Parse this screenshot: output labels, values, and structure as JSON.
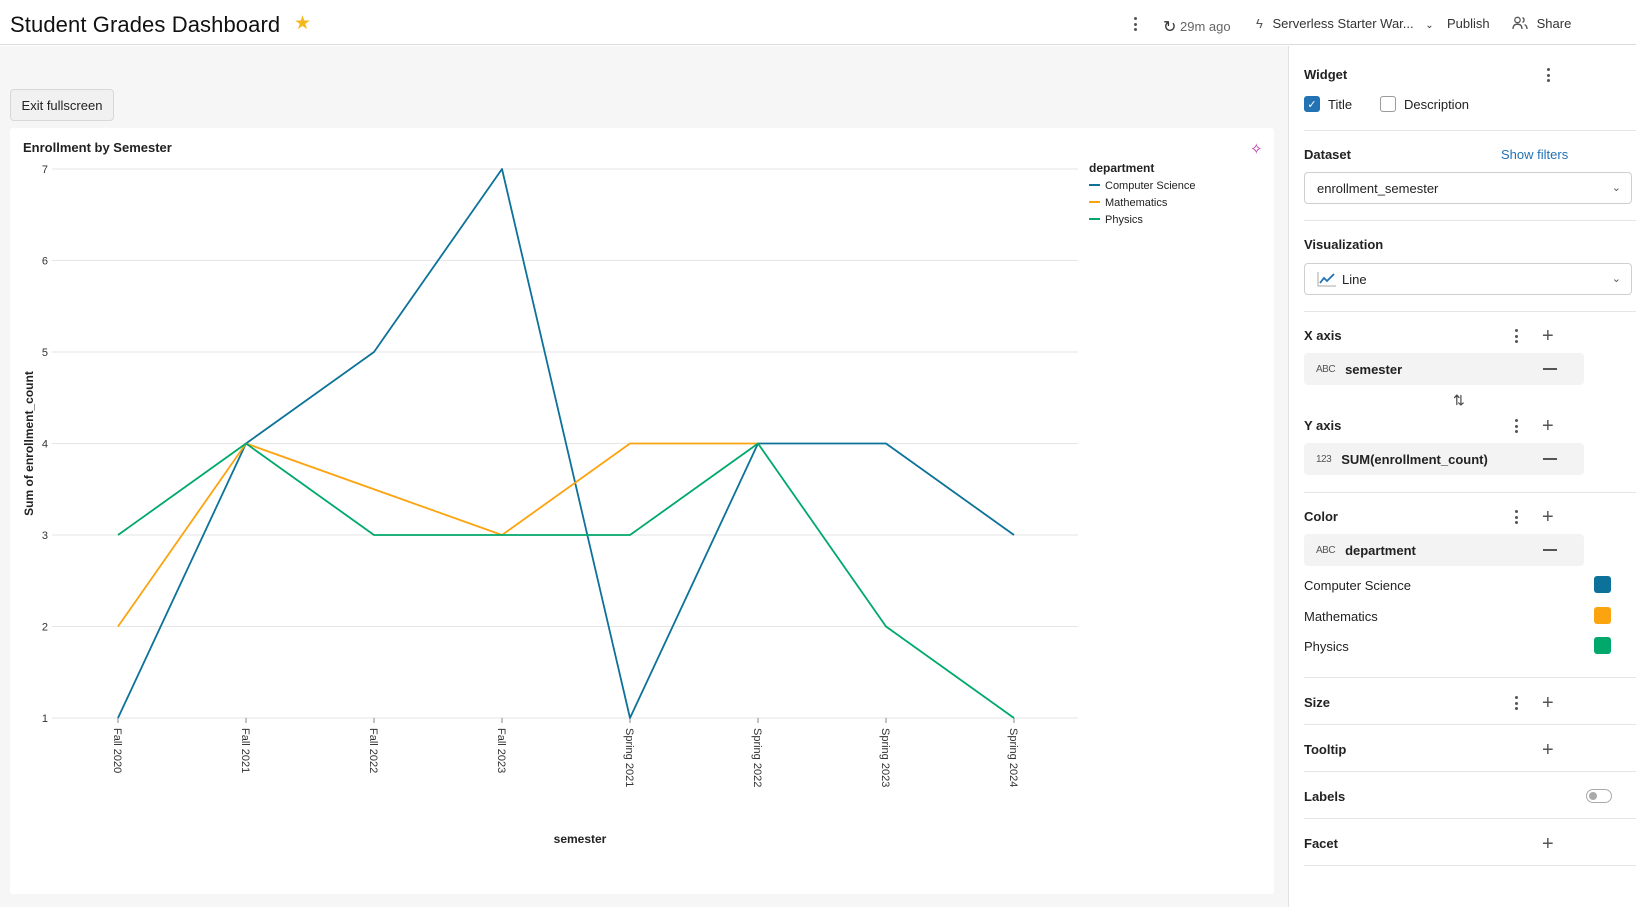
{
  "header": {
    "title": "Student Grades Dashboard",
    "refresh": "29m ago",
    "warehouse": "Serverless Starter War...",
    "publish": "Publish",
    "share": "Share"
  },
  "canvas": {
    "exit_fullscreen": "Exit fullscreen",
    "widget_title": "Enrollment by Semester"
  },
  "panel": {
    "widget": {
      "title": "Widget",
      "title_checkbox": "Title",
      "description_checkbox": "Description"
    },
    "dataset": {
      "title": "Dataset",
      "show_filters": "Show filters",
      "value": "enrollment_semester"
    },
    "visualization": {
      "title": "Visualization",
      "value": "Line"
    },
    "x_axis": {
      "title": "X axis",
      "field": "semester",
      "type": "ABC"
    },
    "y_axis": {
      "title": "Y axis",
      "field": "SUM(enrollment_count)",
      "type": "123"
    },
    "color": {
      "title": "Color",
      "field": "department",
      "type": "ABC",
      "entries": [
        {
          "label": "Computer Science",
          "color": "#0c7299"
        },
        {
          "label": "Mathematics",
          "color": "#fca410"
        },
        {
          "label": "Physics",
          "color": "#00a86b"
        }
      ]
    },
    "size": {
      "title": "Size"
    },
    "tooltip": {
      "title": "Tooltip"
    },
    "labels": {
      "title": "Labels"
    },
    "facet": {
      "title": "Facet"
    }
  },
  "chart_data": {
    "type": "line",
    "title": "Enrollment by Semester",
    "xlabel": "semester",
    "ylabel": "Sum of enrollment_count",
    "categories": [
      "Fall 2020",
      "Fall 2021",
      "Fall 2022",
      "Fall 2023",
      "Spring 2021",
      "Spring 2022",
      "Spring 2023",
      "Spring 2024"
    ],
    "ylim": [
      1,
      7
    ],
    "yticks": [
      1,
      2,
      3,
      4,
      5,
      6,
      7
    ],
    "grid": true,
    "legend_title": "department",
    "legend_position": "top-right",
    "series": [
      {
        "name": "Computer Science",
        "color": "#0c7299",
        "values": [
          1,
          4,
          5,
          7,
          1,
          4,
          4,
          3
        ]
      },
      {
        "name": "Mathematics",
        "color": "#fca410",
        "values": [
          2,
          4,
          null,
          3,
          4,
          4,
          null,
          null
        ]
      },
      {
        "name": "Physics",
        "color": "#00a86b",
        "values": [
          3,
          4,
          3,
          3,
          3,
          4,
          2,
          1
        ]
      }
    ]
  }
}
